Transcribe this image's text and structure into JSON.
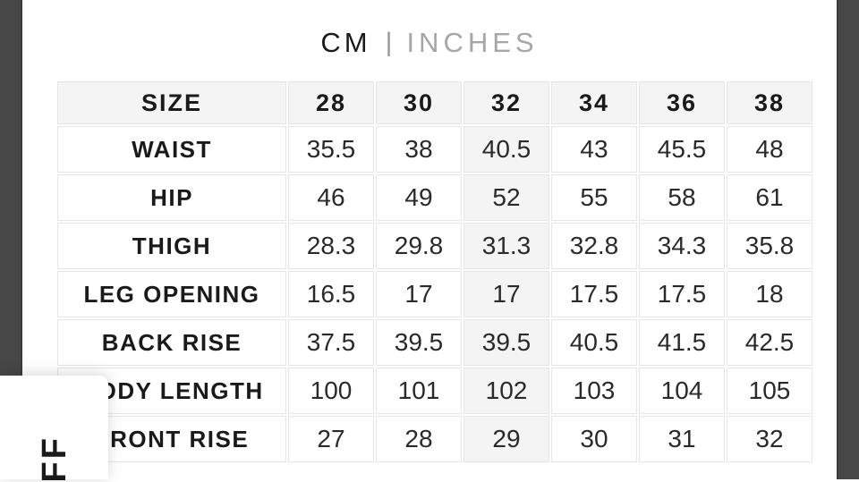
{
  "colors": {
    "side_panel_bg": "#474747",
    "side_panel_edge": "#3a3a3a",
    "header_row_bg": "#f4f4f4",
    "highlight_col_bg": "#f4f4f4",
    "cell_border": "#e6e6e6",
    "text_primary": "#1a1a1a",
    "text_values": "#2a2a2a",
    "inactive_unit": "#a6a6a6",
    "divider": "#999999",
    "card_bg": "#ffffff"
  },
  "unit_toggle": {
    "cm_label": "CM",
    "divider": "|",
    "inches_label": "INCHES",
    "active_unit": "CM"
  },
  "size_chart": {
    "header": [
      "SIZE",
      "28",
      "30",
      "32",
      "34",
      "36",
      "38"
    ],
    "highlighted_size": "32",
    "rows": [
      {
        "label": "WAIST",
        "values": [
          "35.5",
          "38",
          "40.5",
          "43",
          "45.5",
          "48"
        ]
      },
      {
        "label": "HIP",
        "values": [
          "46",
          "49",
          "52",
          "55",
          "58",
          "61"
        ]
      },
      {
        "label": "THIGH",
        "values": [
          "28.3",
          "29.8",
          "31.3",
          "32.8",
          "34.3",
          "35.8"
        ]
      },
      {
        "label": "LEG OPENING",
        "values": [
          "16.5",
          "17",
          "17",
          "17.5",
          "17.5",
          "18"
        ]
      },
      {
        "label": "BACK RISE",
        "values": [
          "37.5",
          "39.5",
          "39.5",
          "40.5",
          "41.5",
          "42.5"
        ]
      },
      {
        "label": "BODY LENGTH",
        "values": [
          "100",
          "101",
          "102",
          "103",
          "104",
          "105"
        ]
      },
      {
        "label": "FRONT RISE",
        "values": [
          "27",
          "28",
          "29",
          "30",
          "31",
          "32"
        ]
      }
    ]
  },
  "promo_ribbon": {
    "visible_text": "FF"
  }
}
